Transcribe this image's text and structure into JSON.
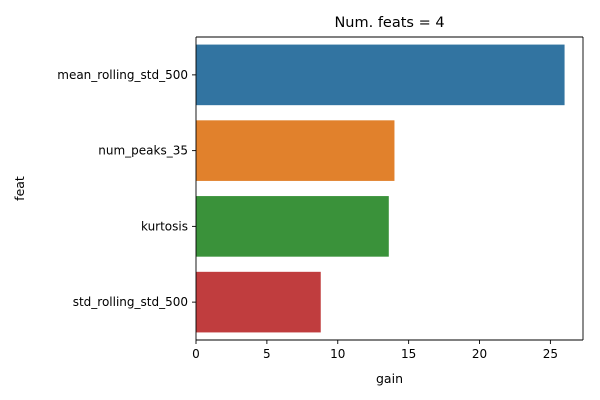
{
  "chart_data": {
    "type": "bar",
    "orientation": "horizontal",
    "title": "Num. feats = 4",
    "xlabel": "gain",
    "ylabel": "feat",
    "categories": [
      "mean_rolling_std_500",
      "num_peaks_35",
      "kurtosis",
      "std_rolling_std_500"
    ],
    "values": [
      26.0,
      14.0,
      13.6,
      8.8
    ],
    "colors": [
      "#3274a1",
      "#e1812c",
      "#3a923a",
      "#c03d3e"
    ],
    "xlim": [
      0,
      27.3
    ],
    "xticks": [
      0,
      5,
      10,
      15,
      20,
      25
    ],
    "grid": false,
    "legend": false
  }
}
